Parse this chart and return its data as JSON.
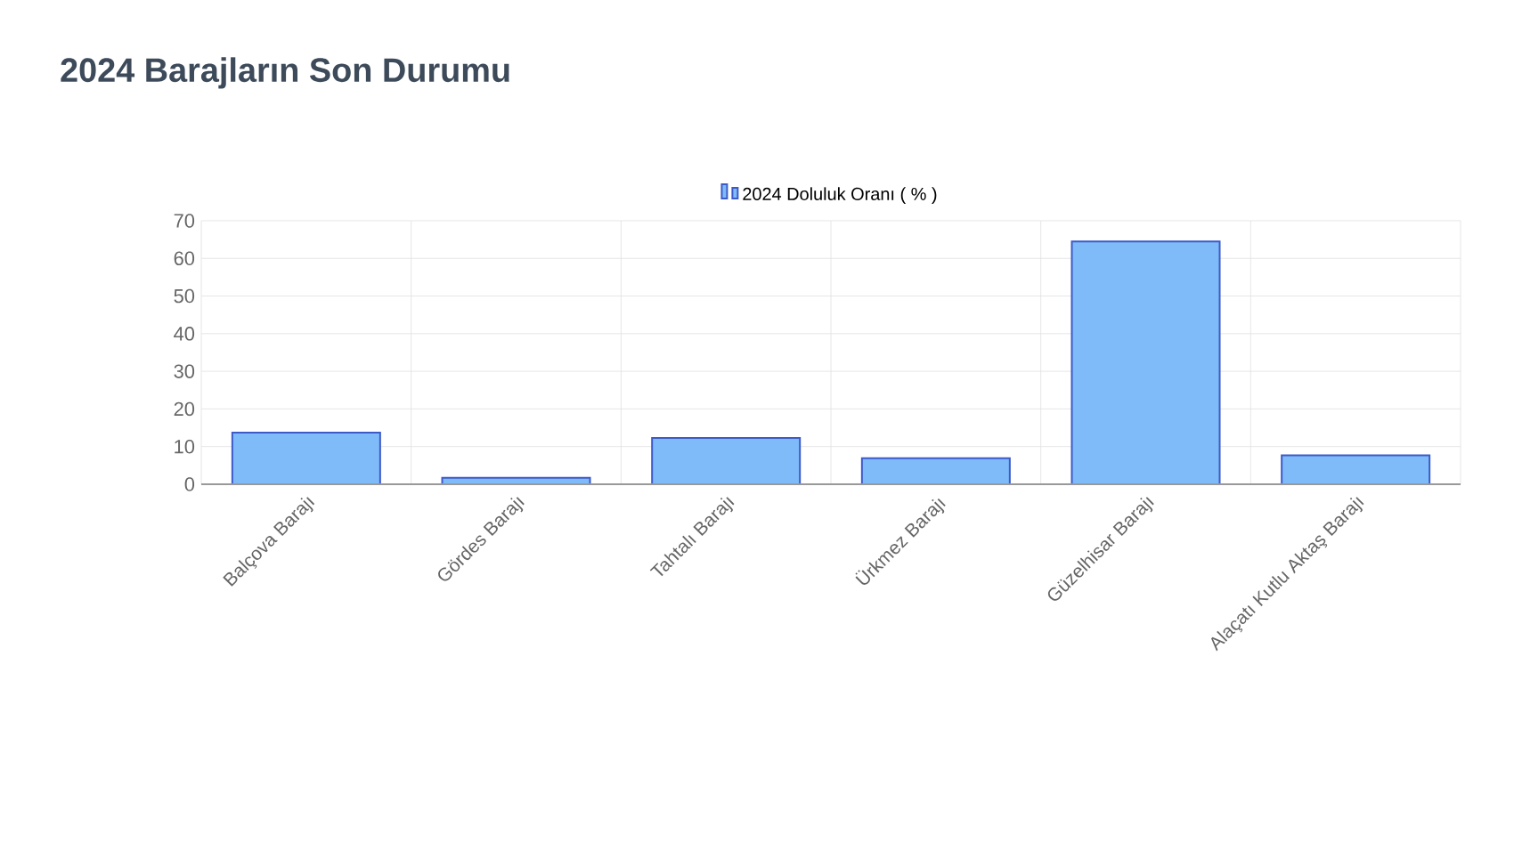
{
  "chart_data": {
    "type": "bar",
    "title": "2024 Barajların Son Durumu",
    "categories": [
      "Balçova Barajı",
      "Gördes Barajı",
      "Tahtalı Barajı",
      "Ürkmez Barajı",
      "Güzelhisar Barajı",
      "Alaçatı Kutlu Aktaş Barajı"
    ],
    "series": [
      {
        "name": "2024 Doluluk Oranı ( % )",
        "color": "#7fbbf9",
        "values": [
          13.7,
          1.7,
          12.3,
          6.9,
          64.5,
          7.7
        ]
      }
    ],
    "ylim": [
      0,
      70
    ],
    "yticks": [
      0,
      10,
      20,
      30,
      40,
      50,
      60,
      70
    ],
    "grid": true,
    "legend": "top"
  }
}
